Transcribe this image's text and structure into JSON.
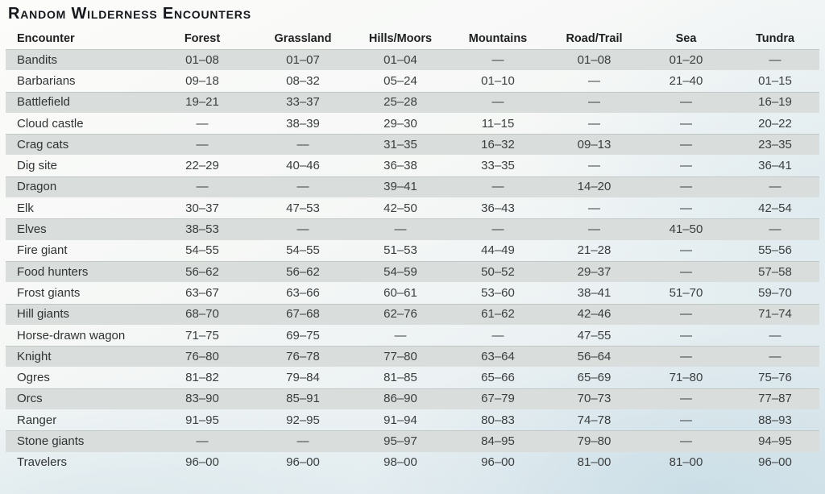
{
  "title": "Random Wilderness Encounters",
  "table": {
    "columns": [
      "Encounter",
      "Forest",
      "Grassland",
      "Hills/Moors",
      "Mountains",
      "Road/Trail",
      "Sea",
      "Tundra"
    ],
    "rows": [
      {
        "encounter": "Bandits",
        "values": [
          "01–08",
          "01–07",
          "01–04",
          "—",
          "01–08",
          "01–20",
          "—"
        ]
      },
      {
        "encounter": "Barbarians",
        "values": [
          "09–18",
          "08–32",
          "05–24",
          "01–10",
          "—",
          "21–40",
          "01–15"
        ]
      },
      {
        "encounter": "Battlefield",
        "values": [
          "19–21",
          "33–37",
          "25–28",
          "—",
          "—",
          "—",
          "16–19"
        ]
      },
      {
        "encounter": "Cloud castle",
        "values": [
          "—",
          "38–39",
          "29–30",
          "11–15",
          "—",
          "—",
          "20–22"
        ]
      },
      {
        "encounter": "Crag cats",
        "values": [
          "—",
          "—",
          "31–35",
          "16–32",
          "09–13",
          "—",
          "23–35"
        ]
      },
      {
        "encounter": "Dig site",
        "values": [
          "22–29",
          "40–46",
          "36–38",
          "33–35",
          "—",
          "—",
          "36–41"
        ]
      },
      {
        "encounter": "Dragon",
        "values": [
          "—",
          "—",
          "39–41",
          "—",
          "14–20",
          "—",
          "—"
        ]
      },
      {
        "encounter": "Elk",
        "values": [
          "30–37",
          "47–53",
          "42–50",
          "36–43",
          "—",
          "—",
          "42–54"
        ]
      },
      {
        "encounter": "Elves",
        "values": [
          "38–53",
          "—",
          "—",
          "—",
          "—",
          "41–50",
          "—"
        ]
      },
      {
        "encounter": "Fire giant",
        "values": [
          "54–55",
          "54–55",
          "51–53",
          "44–49",
          "21–28",
          "—",
          "55–56"
        ]
      },
      {
        "encounter": "Food hunters",
        "values": [
          "56–62",
          "56–62",
          "54–59",
          "50–52",
          "29–37",
          "—",
          "57–58"
        ]
      },
      {
        "encounter": "Frost giants",
        "values": [
          "63–67",
          "63–66",
          "60–61",
          "53–60",
          "38–41",
          "51–70",
          "59–70"
        ]
      },
      {
        "encounter": "Hill giants",
        "values": [
          "68–70",
          "67–68",
          "62–76",
          "61–62",
          "42–46",
          "—",
          "71–74"
        ]
      },
      {
        "encounter": "Horse-drawn wagon",
        "values": [
          "71–75",
          "69–75",
          "—",
          "—",
          "47–55",
          "—",
          "—"
        ]
      },
      {
        "encounter": "Knight",
        "values": [
          "76–80",
          "76–78",
          "77–80",
          "63–64",
          "56–64",
          "—",
          "—"
        ]
      },
      {
        "encounter": "Ogres",
        "values": [
          "81–82",
          "79–84",
          "81–85",
          "65–66",
          "65–69",
          "71–80",
          "75–76"
        ]
      },
      {
        "encounter": "Orcs",
        "values": [
          "83–90",
          "85–91",
          "86–90",
          "67–79",
          "70–73",
          "—",
          "77–87"
        ]
      },
      {
        "encounter": "Ranger",
        "values": [
          "91–95",
          "92–95",
          "91–94",
          "80–83",
          "74–78",
          "—",
          "88–93"
        ]
      },
      {
        "encounter": "Stone giants",
        "values": [
          "—",
          "—",
          "95–97",
          "84–95",
          "79–80",
          "—",
          "94–95"
        ]
      },
      {
        "encounter": "Travelers",
        "values": [
          "96–00",
          "96–00",
          "98–00",
          "96–00",
          "81–00",
          "81–00",
          "96–00"
        ]
      }
    ]
  },
  "colors": {
    "row_stripe": "#d9dddb",
    "page_tint": "#dce8ec",
    "text": "#35383a",
    "title_text": "#14171c"
  }
}
